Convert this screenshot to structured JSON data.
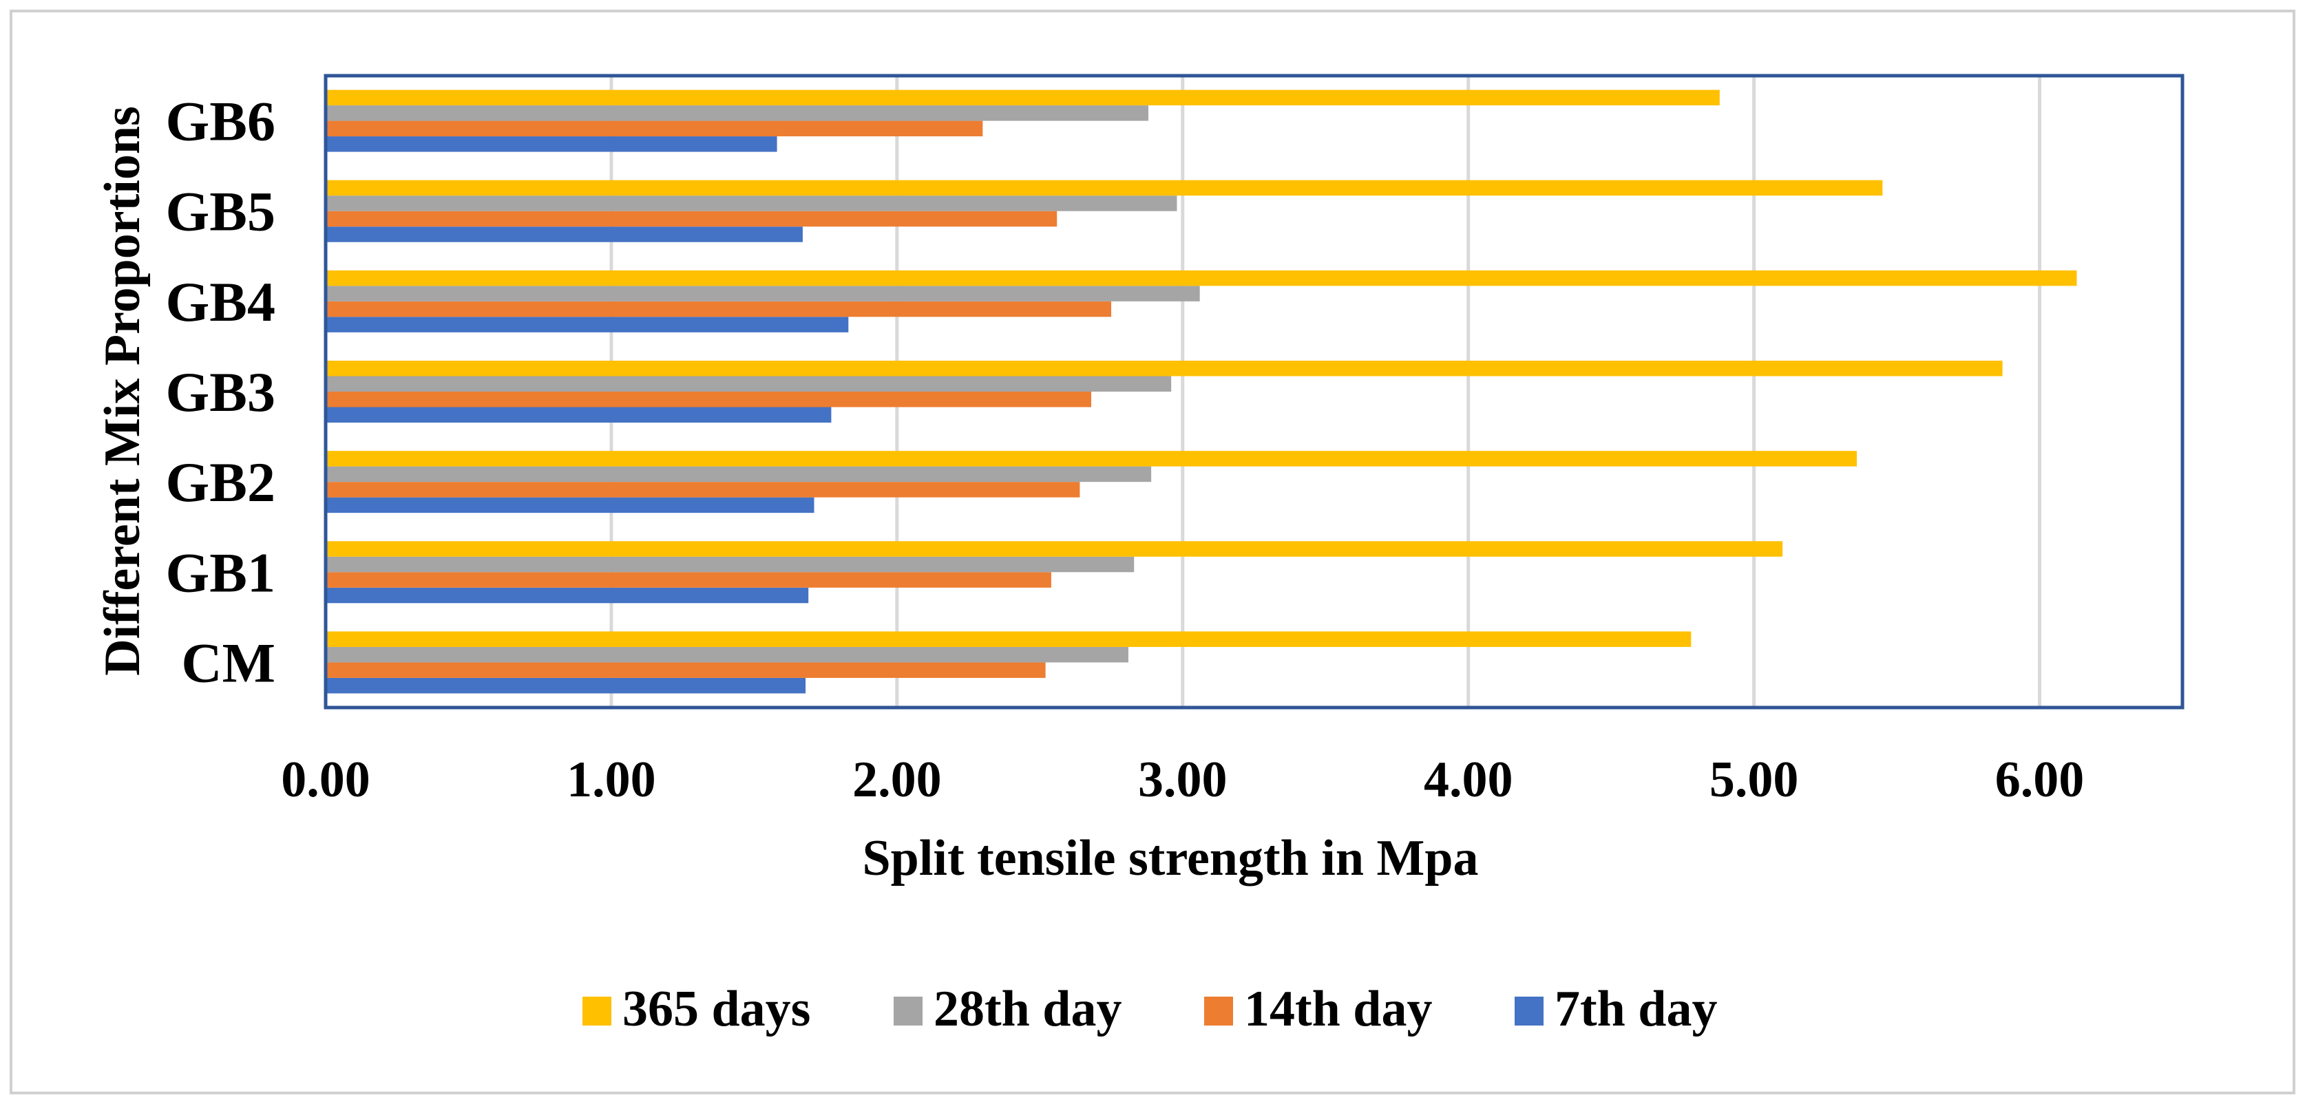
{
  "chart_data": {
    "type": "bar",
    "orientation": "horizontal",
    "categories": [
      "CM",
      "GB1",
      "GB2",
      "GB3",
      "GB4",
      "GB5",
      "GB6"
    ],
    "series": [
      {
        "name": "7th day",
        "color": "#4472C4",
        "values": [
          1.68,
          1.69,
          1.71,
          1.77,
          1.83,
          1.67,
          1.58
        ]
      },
      {
        "name": "14th day",
        "color": "#ED7D31",
        "values": [
          2.52,
          2.54,
          2.64,
          2.68,
          2.75,
          2.56,
          2.3
        ]
      },
      {
        "name": "28th day",
        "color": "#A5A5A5",
        "values": [
          2.81,
          2.83,
          2.89,
          2.96,
          3.06,
          2.98,
          2.88
        ]
      },
      {
        "name": "365 days",
        "color": "#FFC000",
        "values": [
          4.78,
          5.1,
          5.36,
          5.87,
          6.13,
          5.45,
          4.88
        ]
      }
    ],
    "legend_order": [
      "365 days",
      "28th day",
      "14th day",
      "7th day"
    ],
    "xlim": [
      0,
      6.5
    ],
    "xticks": [
      0,
      1,
      2,
      3,
      4,
      5,
      6
    ],
    "xtick_labels": [
      "0.00",
      "1.00",
      "2.00",
      "3.00",
      "4.00",
      "5.00",
      "6.00"
    ],
    "xlabel": "Split tensile strength in Mpa",
    "ylabel": "Different Mix Proportions",
    "grid": "vertical",
    "legend_position": "bottom"
  }
}
